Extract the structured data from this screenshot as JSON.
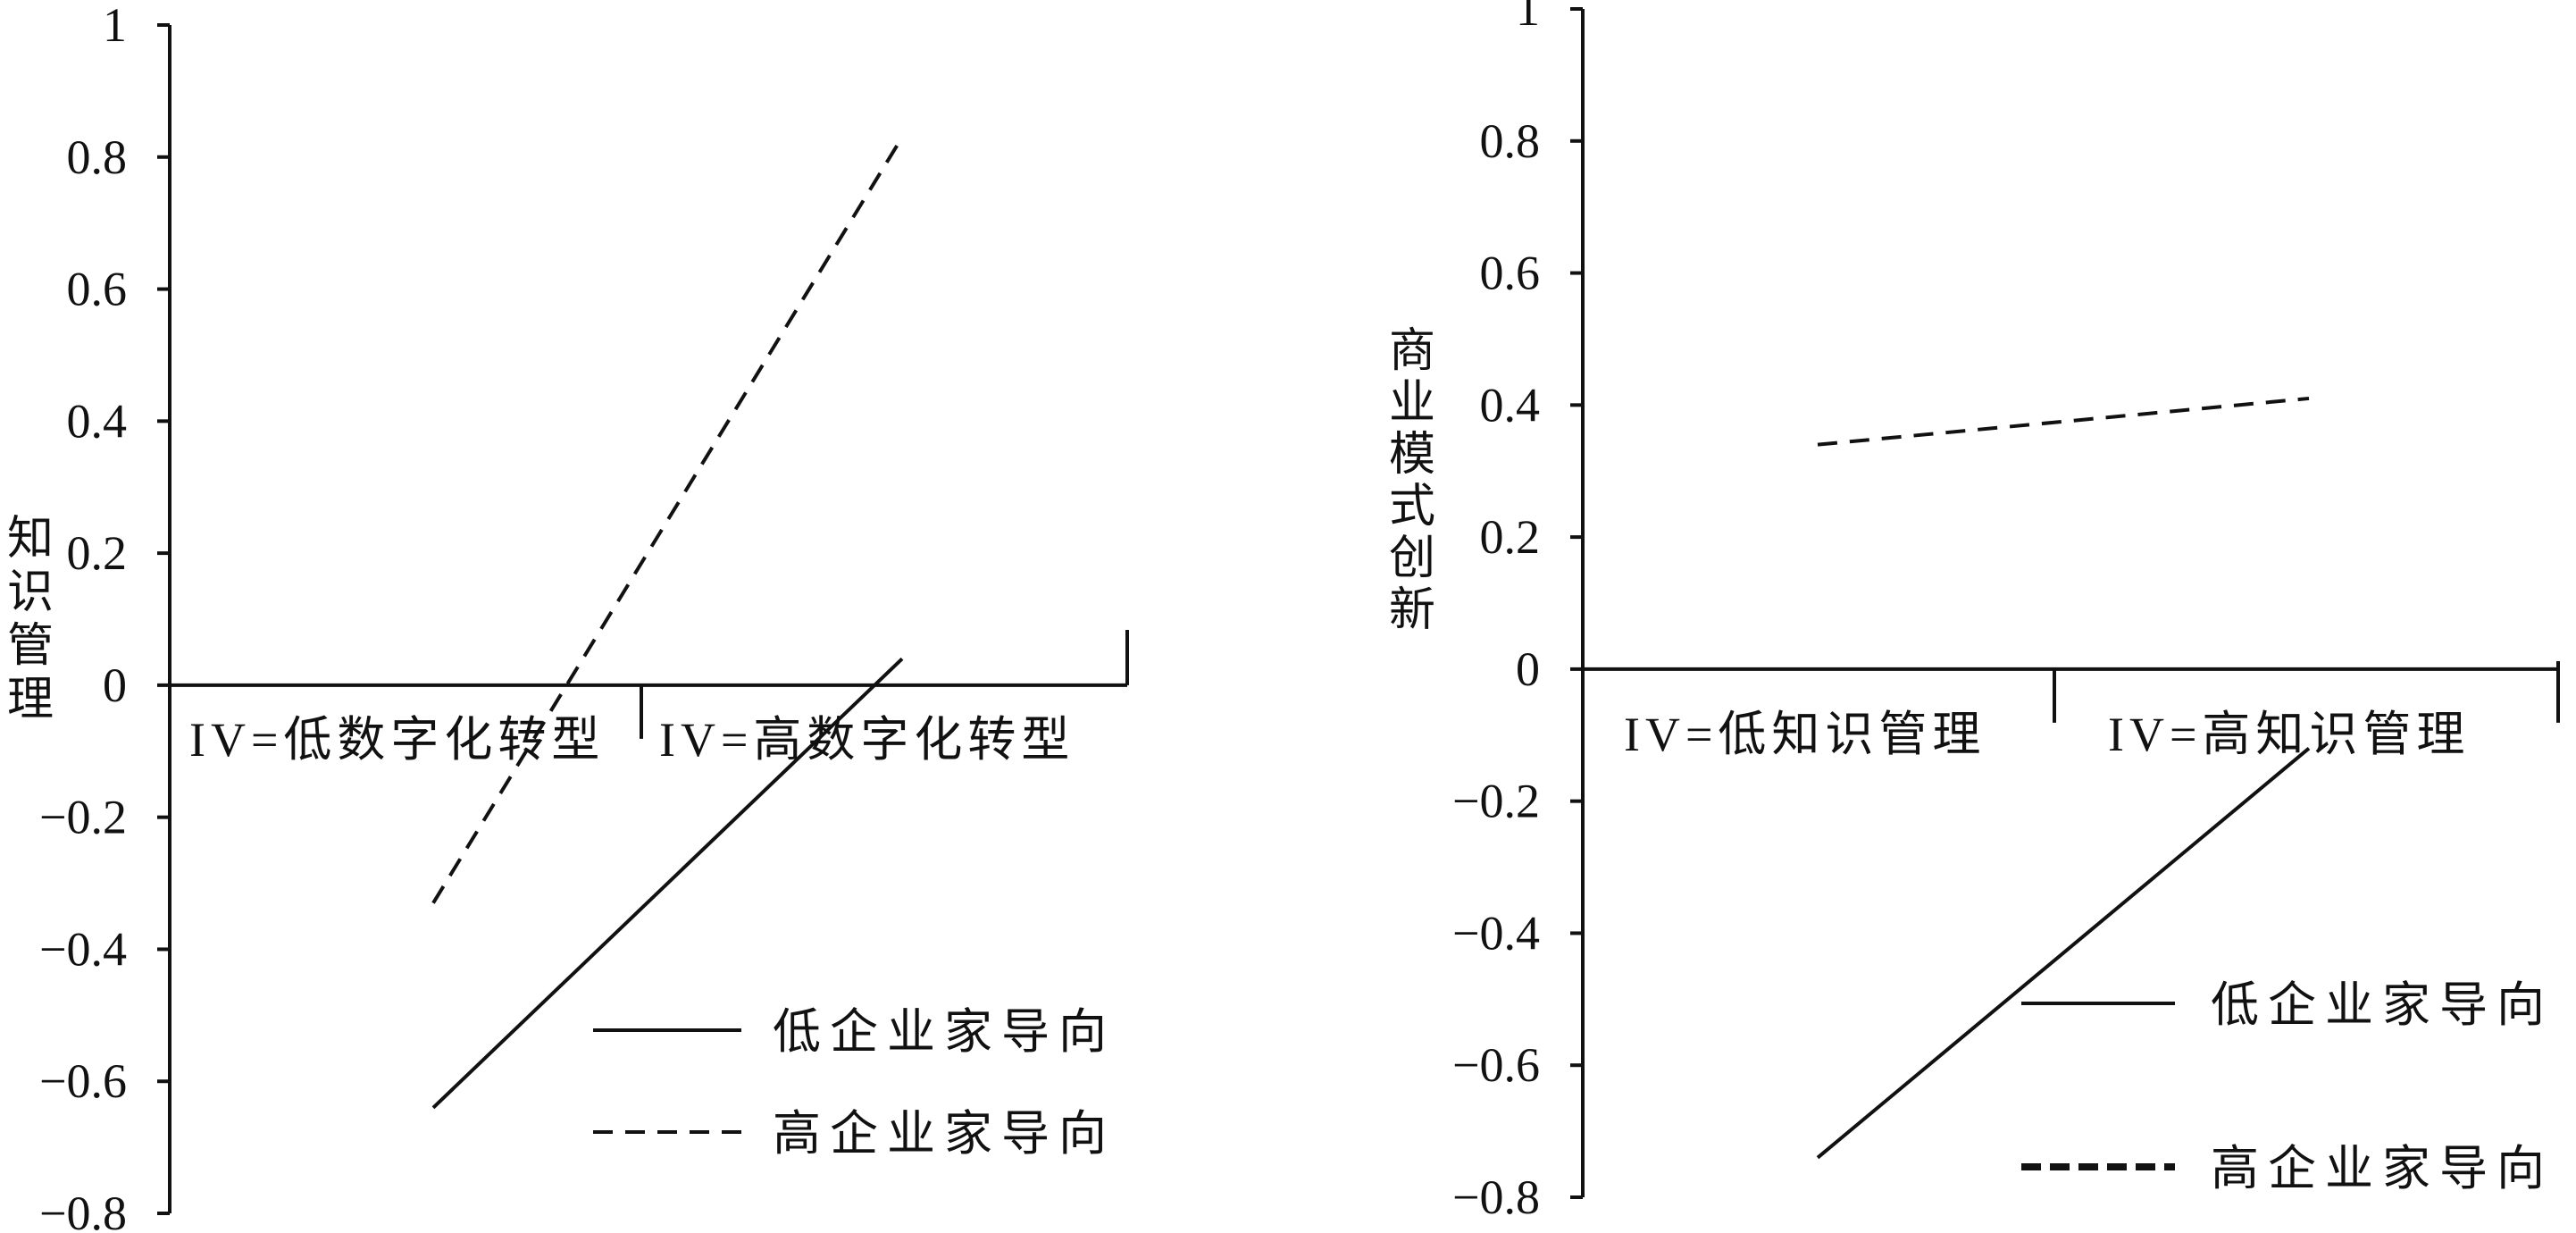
{
  "chart_data": [
    {
      "type": "line",
      "ylabel": "知识管理",
      "ylim": [
        -0.8,
        1
      ],
      "yticks": [
        "1",
        "0.8",
        "0.6",
        "0.4",
        "0.2",
        "0",
        "−0.2",
        "−0.4",
        "−0.6",
        "−0.8"
      ],
      "categories": [
        "IV=低数字化转型",
        "IV=高数字化转型"
      ],
      "legend_position": "bottom-right",
      "series": [
        {
          "name": "低企业家导向",
          "style": "solid",
          "values": [
            -0.64,
            0.04
          ]
        },
        {
          "name": "高企业家导向",
          "style": "dashed",
          "values": [
            -0.33,
            0.83
          ]
        }
      ]
    },
    {
      "type": "line",
      "ylabel": "商业模式创新",
      "ylim": [
        -0.8,
        1
      ],
      "yticks": [
        "1",
        "0.8",
        "0.6",
        "0.4",
        "0.2",
        "0",
        "−0.2",
        "−0.4",
        "−0.6",
        "−0.8"
      ],
      "categories": [
        "IV=低知识管理",
        "IV=高知识管理"
      ],
      "legend_position": "bottom-right",
      "series": [
        {
          "name": "低企业家导向",
          "style": "solid",
          "values": [
            -0.74,
            -0.12
          ]
        },
        {
          "name": "高企业家导向",
          "style": "dashed",
          "values": [
            0.34,
            0.41
          ]
        }
      ]
    }
  ],
  "colors": {
    "line": "#111111",
    "background": "#ffffff"
  }
}
